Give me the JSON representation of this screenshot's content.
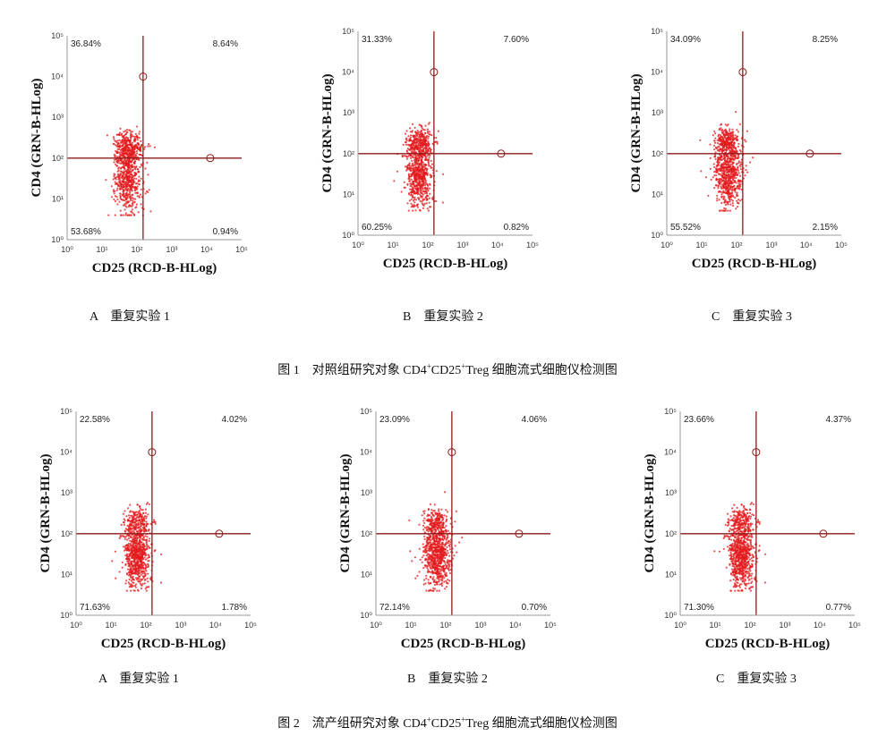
{
  "figures": [
    {
      "title_prefix": "图 1",
      "title_a": "对照组研究对象 CD4",
      "title_b": "CD25",
      "title_c": "Treg 细胞流式细胞仪检测图",
      "sup": "+",
      "panels": [
        {
          "caption": "A　重复实验 1",
          "q": {
            "ul": "36.84%",
            "ur": "8.64%",
            "ll": "53.68%",
            "lr": "0.94%"
          }
        },
        {
          "caption": "B　重复实验 2",
          "q": {
            "ul": "31.33%",
            "ur": "7.60%",
            "ll": "60.25%",
            "lr": "0.82%"
          }
        },
        {
          "caption": "C　重复实验 3",
          "q": {
            "ul": "34.09%",
            "ur": "8.25%",
            "ll": "55.52%",
            "lr": "2.15%"
          }
        }
      ]
    },
    {
      "title_prefix": "图 2",
      "title_a": "流产组研究对象 CD4",
      "title_b": "CD25",
      "title_c": "Treg 细胞流式细胞仪检测图",
      "sup": "+",
      "panels": [
        {
          "caption": "A　重复实验 1",
          "q": {
            "ul": "22.58%",
            "ur": "4.02%",
            "ll": "71.63%",
            "lr": "1.78%"
          }
        },
        {
          "caption": "B　重复实验 2",
          "q": {
            "ul": "23.09%",
            "ur": "4.06%",
            "ll": "72.14%",
            "lr": "0.70%"
          }
        },
        {
          "caption": "C　重复实验 3",
          "q": {
            "ul": "23.66%",
            "ur": "4.37%",
            "ll": "71.30%",
            "lr": "0.77%"
          }
        }
      ]
    }
  ],
  "axis": {
    "xlabel": "CD25 (RCD-B-HLog)",
    "ylabel": "CD4 (GRN-B-HLog)",
    "ticks": [
      "10⁰",
      "10¹",
      "10²",
      "10³",
      "10⁴",
      "10⁵"
    ]
  },
  "chart_data": {
    "type": "scatter",
    "x_scale": "log",
    "y_scale": "log",
    "xlim": [
      1,
      100000
    ],
    "ylim": [
      1,
      100000
    ],
    "gate_x": 150,
    "gate_y": 100,
    "dot_color": "#e3191c",
    "gate_color": "#8b1a1a"
  }
}
